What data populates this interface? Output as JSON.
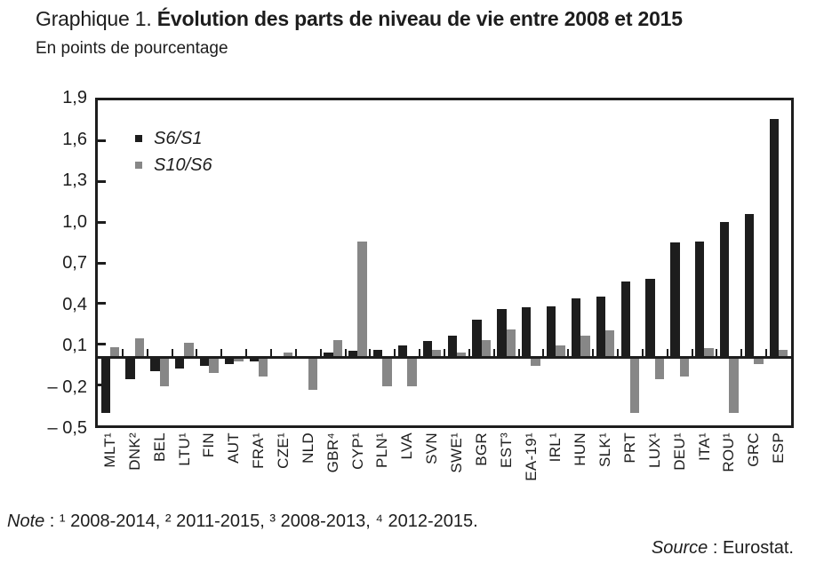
{
  "title": {
    "prefix": "Graphique 1. ",
    "main": "Évolution des parts de niveau de vie entre 2008 et 2015"
  },
  "subtitle": "En points de pourcentage",
  "legend": [
    {
      "label": "S6/S1",
      "color": "#1d1d1d"
    },
    {
      "label": "S10/S6",
      "color": "#878787"
    }
  ],
  "note": {
    "label": "Note",
    "text": " : ¹ 2008-2014, ² 2011-2015, ³ 2008-2013, ⁴ 2012-2015."
  },
  "source": {
    "label": "Source",
    "text": " : Eurostat."
  },
  "colors": {
    "axis": "#1d1d1d",
    "bar_dark": "#1d1d1d",
    "bar_gray": "#878787"
  },
  "chart_data": {
    "type": "bar",
    "title": "Graphique 1. Évolution des parts de niveau de vie entre 2008 et 2015",
    "subtitle": "En points de pourcentage",
    "unit": "points de pourcentage",
    "ylim": [
      -0.5,
      1.9
    ],
    "ytick_step": 0.3,
    "yticks": [
      {
        "value": 1.9,
        "label": "1,9"
      },
      {
        "value": 1.6,
        "label": "1,6"
      },
      {
        "value": 1.3,
        "label": "1,3"
      },
      {
        "value": 1.0,
        "label": "1,0"
      },
      {
        "value": 0.7,
        "label": "0,7"
      },
      {
        "value": 0.4,
        "label": "0,4"
      },
      {
        "value": 0.1,
        "label": "0,1"
      },
      {
        "value": -0.2,
        "label": "– 0,2"
      },
      {
        "value": -0.5,
        "label": "– 0,5"
      }
    ],
    "categories": [
      "MLT¹",
      "DNK²",
      "BEL",
      "LTU¹",
      "FIN",
      "AUT",
      "FRA¹",
      "CZE¹",
      "NLD",
      "GBR⁴",
      "CYP¹",
      "PLN¹",
      "LVA",
      "SVN",
      "SWE¹",
      "BGR",
      "EST³",
      "EA-19¹",
      "IRL¹",
      "HUN",
      "SLK¹",
      "PRT",
      "LUX¹",
      "DEU¹",
      "ITA¹",
      "ROU¹",
      "GRC",
      "ESP"
    ],
    "series": [
      {
        "name": "S6/S1",
        "color": "#1d1d1d",
        "values": [
          -0.41,
          -0.16,
          -0.1,
          -0.08,
          -0.06,
          -0.05,
          -0.03,
          0.0,
          0.0,
          0.04,
          0.05,
          0.06,
          0.09,
          0.12,
          0.16,
          0.28,
          0.36,
          0.37,
          0.38,
          0.44,
          0.45,
          0.56,
          0.58,
          0.85,
          0.86,
          1.0,
          1.06,
          1.76
        ]
      },
      {
        "name": "S10/S6",
        "color": "#878787",
        "values": [
          0.08,
          0.14,
          -0.21,
          0.11,
          -0.11,
          -0.03,
          -0.14,
          0.04,
          -0.24,
          0.13,
          0.86,
          -0.21,
          -0.21,
          0.06,
          0.04,
          0.13,
          0.21,
          -0.06,
          0.09,
          0.16,
          0.2,
          -0.41,
          -0.16,
          -0.14,
          0.07,
          -0.41,
          -0.05,
          0.06
        ]
      }
    ],
    "legend_position": "top-left-inside",
    "grid": false
  }
}
